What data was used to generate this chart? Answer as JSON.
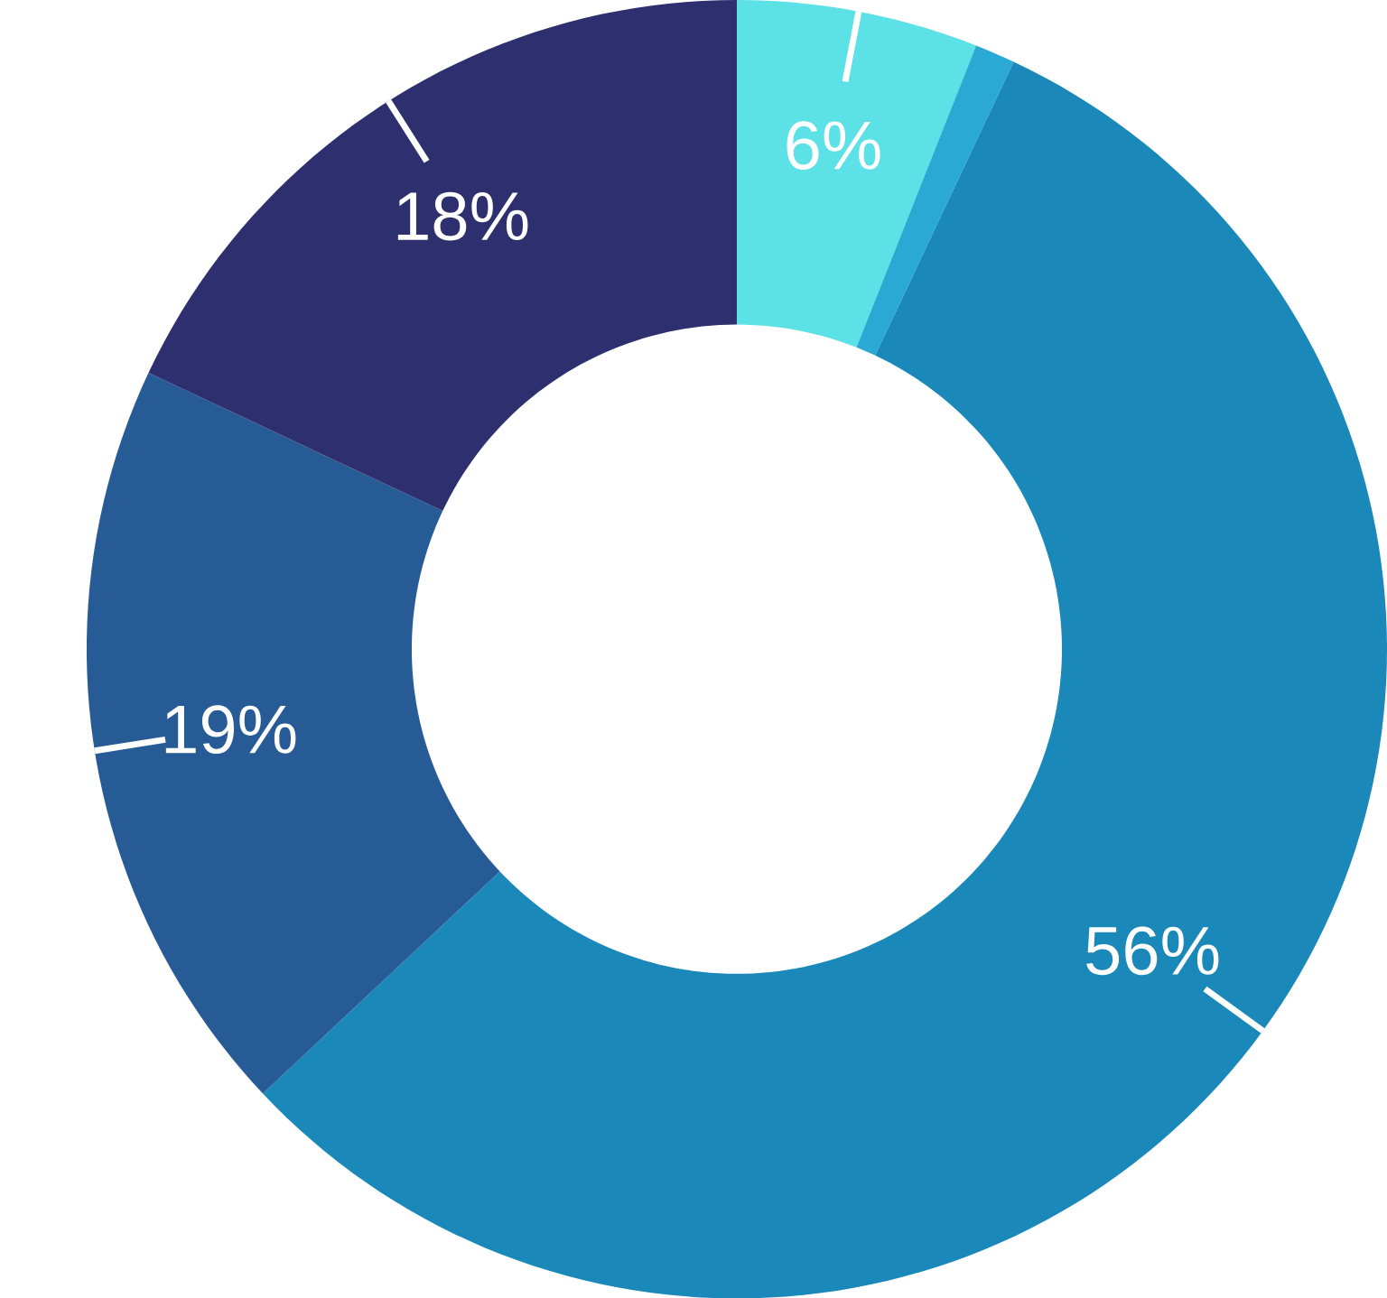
{
  "chart_data": {
    "type": "donut",
    "categories": [
      null,
      null,
      null,
      null,
      null
    ],
    "values": [
      6,
      1,
      56,
      19,
      18
    ],
    "value_labels": [
      "6%",
      null,
      "56%",
      "19%",
      "18%"
    ],
    "colors": [
      "#5ce1e6",
      "#29a9d4",
      "#1a89b9",
      "#275b96",
      "#2e2f6e"
    ]
  }
}
